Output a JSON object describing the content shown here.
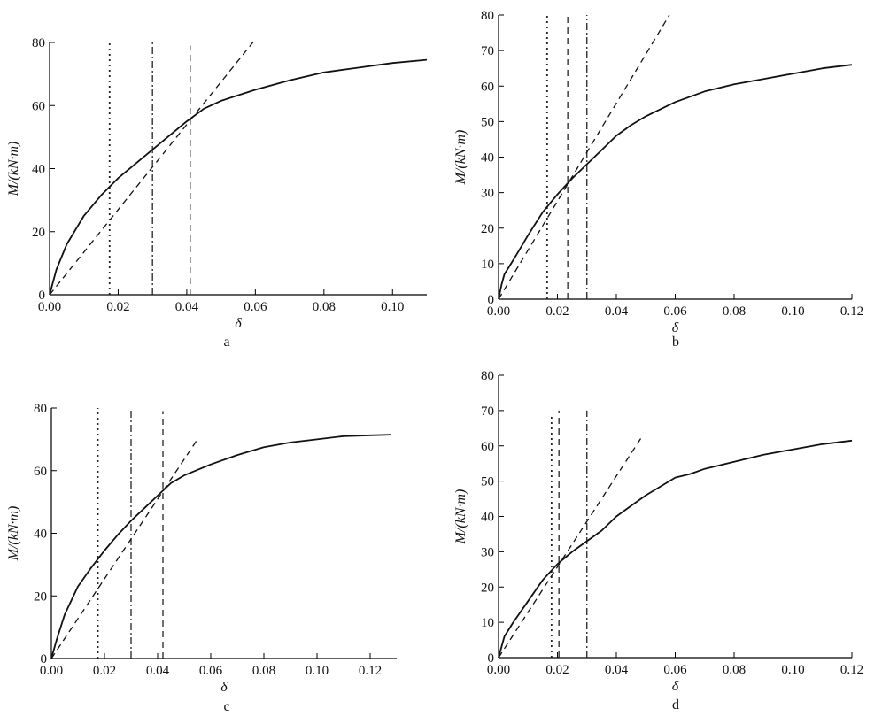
{
  "chart_data": [
    {
      "type": "line",
      "panel_label": "a",
      "xlabel": "δ",
      "ylabel": "M/(kN·m)",
      "xlim": [
        0,
        0.11
      ],
      "ylim": [
        0,
        80
      ],
      "xticks": [
        "0.00",
        "0.02",
        "0.04",
        "0.06",
        "0.08",
        "0.10"
      ],
      "yticks": [
        "0",
        "20",
        "40",
        "60",
        "80"
      ],
      "series": [
        {
          "style": "solid",
          "x": [
            0,
            0.002,
            0.005,
            0.01,
            0.015,
            0.02,
            0.025,
            0.03,
            0.035,
            0.04,
            0.045,
            0.05,
            0.06,
            0.07,
            0.08,
            0.09,
            0.1,
            0.11
          ],
          "y": [
            0,
            8,
            16,
            25,
            31.5,
            37,
            41.5,
            46,
            50.5,
            55,
            59,
            61.5,
            65,
            68,
            70.5,
            72,
            73.5,
            74.5
          ]
        },
        {
          "style": "dashed",
          "x": [
            0,
            0.06
          ],
          "y": [
            0,
            81
          ]
        }
      ],
      "vlines": [
        {
          "x": 0.0175,
          "style": "dotted",
          "ymax": 80
        },
        {
          "x": 0.03,
          "style": "dashdot",
          "ymax": 80
        },
        {
          "x": 0.041,
          "style": "dashed",
          "ymax": 79
        }
      ]
    },
    {
      "type": "line",
      "panel_label": "b",
      "xlabel": "δ",
      "ylabel": "M/(kN·m)",
      "xlim": [
        0,
        0.12
      ],
      "ylim": [
        0,
        80
      ],
      "xticks": [
        "0.00",
        "0.02",
        "0.04",
        "0.06",
        "0.08",
        "0.10",
        "0.12"
      ],
      "yticks": [
        "0",
        "10",
        "20",
        "30",
        "40",
        "50",
        "60",
        "70",
        "80"
      ],
      "series": [
        {
          "style": "solid",
          "x": [
            0,
            0.001,
            0.002,
            0.005,
            0.01,
            0.015,
            0.02,
            0.025,
            0.03,
            0.035,
            0.04,
            0.045,
            0.05,
            0.06,
            0.07,
            0.08,
            0.09,
            0.1,
            0.11,
            0.12
          ],
          "y": [
            0,
            4,
            7,
            11,
            18,
            24.5,
            29.5,
            34,
            38,
            42,
            46,
            49,
            51.5,
            55.5,
            58.5,
            60.5,
            62,
            63.5,
            65,
            66
          ]
        },
        {
          "style": "dashed",
          "x": [
            0,
            0.058
          ],
          "y": [
            0,
            80
          ]
        }
      ],
      "vlines": [
        {
          "x": 0.0165,
          "style": "dotted",
          "ymax": 80
        },
        {
          "x": 0.0235,
          "style": "dashed",
          "ymax": 80
        },
        {
          "x": 0.03,
          "style": "dashdot",
          "ymax": 80
        }
      ]
    },
    {
      "type": "line",
      "panel_label": "c",
      "xlabel": "δ",
      "ylabel": "M/(kN·m)",
      "xlim": [
        0,
        0.13
      ],
      "ylim": [
        0,
        80
      ],
      "xticks": [
        "0.00",
        "0.02",
        "0.04",
        "0.06",
        "0.08",
        "0.10",
        "0.12"
      ],
      "yticks": [
        "0",
        "20",
        "40",
        "60",
        "80"
      ],
      "series": [
        {
          "style": "solid",
          "x": [
            0,
            0.002,
            0.005,
            0.01,
            0.015,
            0.02,
            0.025,
            0.03,
            0.035,
            0.04,
            0.045,
            0.05,
            0.06,
            0.07,
            0.08,
            0.09,
            0.1,
            0.11,
            0.12,
            0.128
          ],
          "y": [
            0,
            6,
            14,
            23,
            29,
            34.5,
            39.5,
            44,
            48,
            52,
            56,
            58.5,
            62,
            65,
            67.5,
            69,
            70,
            71,
            71.3,
            71.5
          ]
        },
        {
          "style": "dashed",
          "x": [
            0,
            0.055
          ],
          "y": [
            0,
            70
          ]
        }
      ],
      "vlines": [
        {
          "x": 0.0175,
          "style": "dotted",
          "ymax": 80
        },
        {
          "x": 0.03,
          "style": "dashdot",
          "ymax": 80
        },
        {
          "x": 0.042,
          "style": "dashed",
          "ymax": 79
        }
      ]
    },
    {
      "type": "line",
      "panel_label": "d",
      "xlabel": "δ",
      "ylabel": "M/(kN·m)",
      "xlim": [
        0,
        0.12
      ],
      "ylim": [
        0,
        80
      ],
      "xticks": [
        "0.00",
        "0.02",
        "0.04",
        "0.06",
        "0.08",
        "0.10",
        "0.12"
      ],
      "yticks": [
        "0",
        "10",
        "20",
        "30",
        "40",
        "50",
        "60",
        "70",
        "80"
      ],
      "series": [
        {
          "style": "solid",
          "x": [
            0,
            0.001,
            0.002,
            0.005,
            0.01,
            0.015,
            0.02,
            0.025,
            0.03,
            0.035,
            0.04,
            0.045,
            0.05,
            0.055,
            0.06,
            0.065,
            0.07,
            0.08,
            0.09,
            0.1,
            0.11,
            0.12
          ],
          "y": [
            0,
            3,
            6,
            10,
            16,
            22,
            26.5,
            30,
            33,
            36,
            40,
            43,
            46,
            48.5,
            51,
            52,
            53.5,
            55.5,
            57.5,
            59,
            60.5,
            61.5
          ]
        },
        {
          "style": "dashed",
          "x": [
            0,
            0.049
          ],
          "y": [
            0,
            63
          ]
        }
      ],
      "vlines": [
        {
          "x": 0.018,
          "style": "dotted",
          "ymax": 69
        },
        {
          "x": 0.0205,
          "style": "dashed",
          "ymax": 70
        },
        {
          "x": 0.03,
          "style": "dashdot",
          "ymax": 70
        }
      ]
    }
  ]
}
